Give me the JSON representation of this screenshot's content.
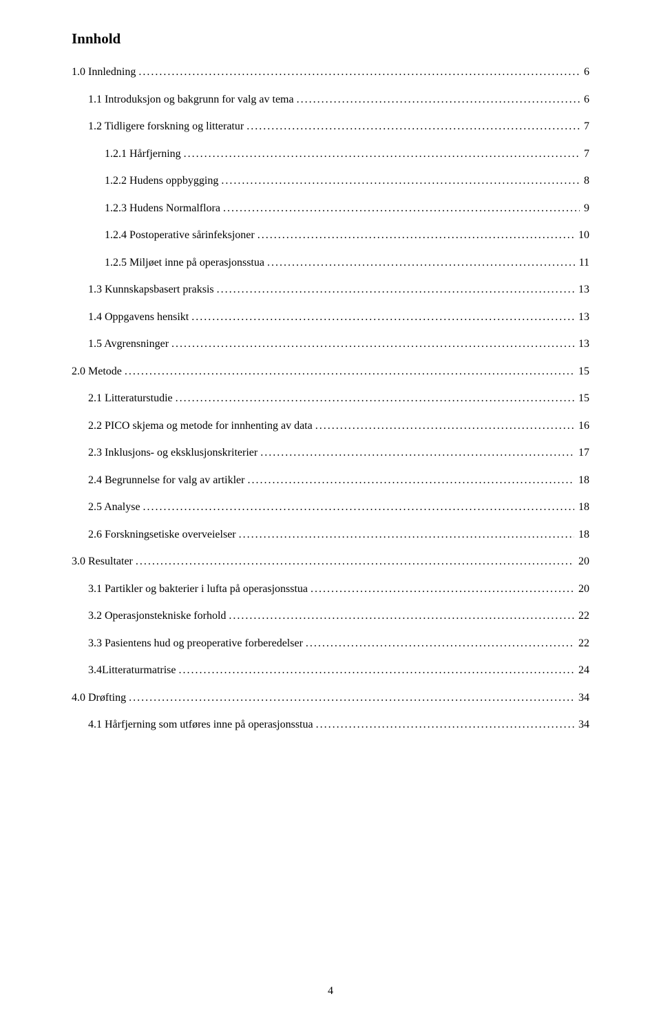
{
  "title": "Innhold",
  "page_number": "4",
  "colors": {
    "background": "#ffffff",
    "text": "#000000"
  },
  "typography": {
    "font_family": "Times New Roman",
    "title_fontsize_pt": 16,
    "title_weight": "bold",
    "entry_fontsize_pt": 12
  },
  "entries": [
    {
      "label": "1.0 Innledning",
      "page": "6",
      "indent": 0
    },
    {
      "label": "1.1 Introduksjon og bakgrunn for valg av tema",
      "page": "6",
      "indent": 1
    },
    {
      "label": "1.2 Tidligere forskning og litteratur",
      "page": "7",
      "indent": 1
    },
    {
      "label": "1.2.1 Hårfjerning",
      "page": "7",
      "indent": 2
    },
    {
      "label": "1.2.2 Hudens oppbygging",
      "page": "8",
      "indent": 2
    },
    {
      "label": "1.2.3 Hudens Normalflora",
      "page": "9",
      "indent": 2
    },
    {
      "label": "1.2.4 Postoperative sårinfeksjoner",
      "page": "10",
      "indent": 2
    },
    {
      "label": "1.2.5 Miljøet inne på operasjonsstua",
      "page": "11",
      "indent": 2
    },
    {
      "label": "1.3 Kunnskapsbasert praksis",
      "page": "13",
      "indent": 1
    },
    {
      "label": "1.4 Oppgavens hensikt",
      "page": "13",
      "indent": 1
    },
    {
      "label": "1.5 Avgrensninger",
      "page": "13",
      "indent": 1
    },
    {
      "label": "2.0 Metode",
      "page": "15",
      "indent": 0
    },
    {
      "label": "2.1 Litteraturstudie",
      "page": "15",
      "indent": 1
    },
    {
      "label": "2.2 PICO skjema og metode for innhenting av data",
      "page": "16",
      "indent": 1
    },
    {
      "label": "2.3 Inklusjons- og eksklusjonskriterier",
      "page": "17",
      "indent": 1
    },
    {
      "label": "2.4 Begrunnelse for valg av artikler",
      "page": "18",
      "indent": 1
    },
    {
      "label": "2.5 Analyse",
      "page": "18",
      "indent": 1
    },
    {
      "label": "2.6 Forskningsetiske overveielser",
      "page": "18",
      "indent": 1
    },
    {
      "label": "3.0 Resultater",
      "page": "20",
      "indent": 0
    },
    {
      "label": "3.1 Partikler og bakterier i lufta på operasjonsstua",
      "page": "20",
      "indent": 1
    },
    {
      "label": "3.2 Operasjonstekniske forhold",
      "page": "22",
      "indent": 1
    },
    {
      "label": "3.3 Pasientens hud og preoperative forberedelser",
      "page": "22",
      "indent": 1
    },
    {
      "label": "3.4Litteraturmatrise",
      "page": "24",
      "indent": 1
    },
    {
      "label": "4.0 Drøfting",
      "page": "34",
      "indent": 0
    },
    {
      "label": "4.1 Hårfjerning som utføres inne på operasjonsstua",
      "page": "34",
      "indent": 1
    }
  ]
}
